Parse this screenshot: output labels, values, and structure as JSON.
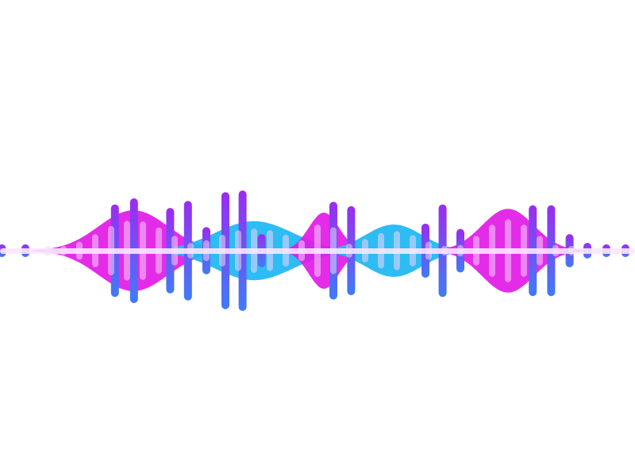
{
  "visual": {
    "description_type": "audio-waveform-graphic",
    "colors": {
      "magenta": "#e21ae6",
      "cyan": "#22b8f2",
      "bar_top": "#9b2cf0",
      "bar_bottom": "#3f7bf7",
      "highlight": "#f3d4fb",
      "center_line": "#fbe7ff"
    },
    "wave_blobs": [
      {
        "color": "magenta",
        "center": 0.21,
        "width": 0.16,
        "amplitude": 0.85
      },
      {
        "color": "cyan",
        "center": 0.4,
        "width": 0.18,
        "amplitude": 0.62
      },
      {
        "color": "magenta",
        "center": 0.51,
        "width": 0.07,
        "amplitude": 0.8
      },
      {
        "color": "cyan",
        "center": 0.62,
        "width": 0.13,
        "amplitude": 0.55
      },
      {
        "color": "magenta",
        "center": 0.8,
        "width": 0.12,
        "amplitude": 0.88
      }
    ],
    "bars": [
      {
        "pos": 0.003,
        "level": 0.04
      },
      {
        "pos": 0.04,
        "level": 0.04
      },
      {
        "pos": 0.181,
        "level": 0.53
      },
      {
        "pos": 0.211,
        "level": 0.6
      },
      {
        "pos": 0.268,
        "level": 0.49
      },
      {
        "pos": 0.296,
        "level": 0.57
      },
      {
        "pos": 0.325,
        "level": 0.27
      },
      {
        "pos": 0.355,
        "level": 0.67
      },
      {
        "pos": 0.382,
        "level": 0.69
      },
      {
        "pos": 0.412,
        "level": 0.19
      },
      {
        "pos": 0.525,
        "level": 0.56
      },
      {
        "pos": 0.553,
        "level": 0.51
      },
      {
        "pos": 0.67,
        "level": 0.31
      },
      {
        "pos": 0.697,
        "level": 0.53
      },
      {
        "pos": 0.725,
        "level": 0.25
      },
      {
        "pos": 0.839,
        "level": 0.52
      },
      {
        "pos": 0.868,
        "level": 0.52
      },
      {
        "pos": 0.897,
        "level": 0.19
      },
      {
        "pos": 0.925,
        "level": 0.09
      },
      {
        "pos": 0.955,
        "level": 0.05
      },
      {
        "pos": 0.985,
        "level": 0.04
      }
    ],
    "inner_ticks": [
      0.075,
      0.1,
      0.125,
      0.15,
      0.175,
      0.2,
      0.225,
      0.25,
      0.275,
      0.3,
      0.325,
      0.35,
      0.375,
      0.4,
      0.425,
      0.45,
      0.475,
      0.5,
      0.525,
      0.55,
      0.575,
      0.6,
      0.625,
      0.65,
      0.675,
      0.7,
      0.725,
      0.75,
      0.775,
      0.8,
      0.825,
      0.85,
      0.875,
      0.9
    ]
  }
}
